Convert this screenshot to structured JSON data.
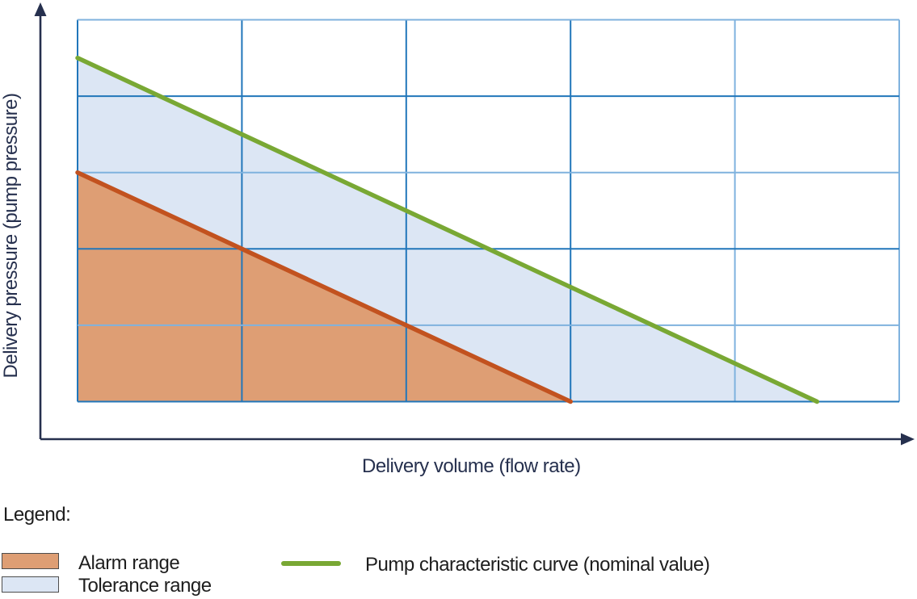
{
  "labels": {
    "y_axis": "Delivery pressure (pump pressure)",
    "x_axis": "Delivery volume (flow rate)"
  },
  "legend": {
    "title": "Legend:",
    "alarm_label": "Alarm range",
    "tolerance_label": "Tolerance range",
    "curve_label": "Pump characteristic curve (nominal value)"
  },
  "colors": {
    "pump_curve": "#79A834",
    "alarm_line": "#C2521F",
    "alarm_fill": "#DE9E74",
    "tolerance_fill": "#DCE6F4",
    "grid_light": "#7FB2DE",
    "grid_medium": "#2176BA",
    "axis": "#26304E",
    "axis_text": "#26304E",
    "legend_text": "#1E1E1E",
    "swatch_border": "#4D4D4D"
  },
  "chart_data": {
    "type": "area",
    "title": "",
    "xlabel": "Delivery volume (flow rate)",
    "ylabel": "Delivery pressure (pump pressure)",
    "x_range": [
      0,
      5
    ],
    "y_range": [
      0,
      5
    ],
    "axis_tick_labels": "none (qualitative diagram, unlabeled 5x5 grid)",
    "grid": {
      "x_divisions": 5,
      "y_divisions": 5,
      "v_shades": [
        "medium",
        "medium",
        "medium",
        "medium",
        "light",
        "light"
      ],
      "h_shades": [
        "light",
        "medium",
        "light",
        "medium",
        "light",
        "medium"
      ]
    },
    "series": [
      {
        "name": "Pump characteristic curve (nominal value)",
        "type": "line",
        "color_key": "pump_curve",
        "points": [
          [
            0,
            4.5
          ],
          [
            4.5,
            0
          ]
        ]
      },
      {
        "name": "Alarm range boundary",
        "type": "line",
        "color_key": "alarm_line",
        "points": [
          [
            0,
            3
          ],
          [
            3,
            0
          ]
        ]
      }
    ],
    "regions": [
      {
        "name": "Tolerance range",
        "color_key": "tolerance_fill",
        "polygon": [
          [
            0,
            3
          ],
          [
            0,
            4.5
          ],
          [
            4.5,
            0
          ],
          [
            3,
            0
          ]
        ]
      },
      {
        "name": "Alarm range",
        "color_key": "alarm_fill",
        "polygon": [
          [
            0,
            0
          ],
          [
            0,
            3
          ],
          [
            3,
            0
          ]
        ]
      }
    ],
    "legend_position": "below chart"
  }
}
